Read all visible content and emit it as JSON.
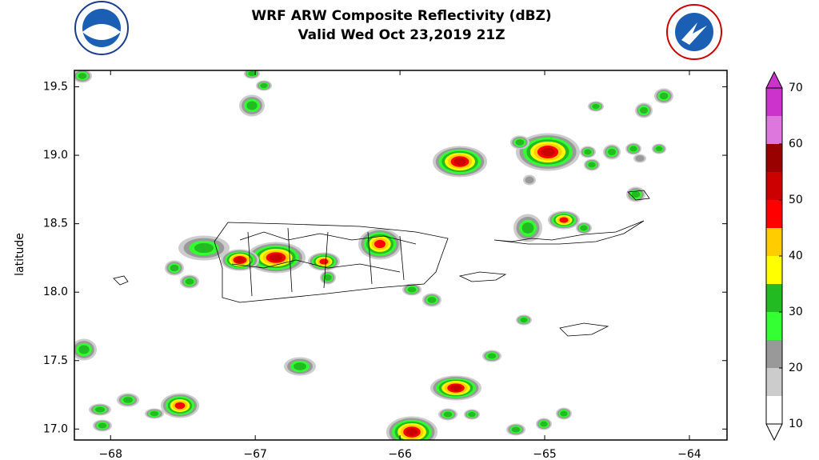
{
  "chart_data": {
    "type": "map",
    "title": "WRF ARW Composite Reflectivity (dBZ)",
    "subtitle": "Valid Wed Oct 23,2019 21Z",
    "y_label": "latitude",
    "xlim": [
      -68.25,
      -63.74
    ],
    "ylim": [
      16.92,
      19.62
    ],
    "xticks": [
      {
        "value": -68,
        "label": "−68"
      },
      {
        "value": -67,
        "label": "−67"
      },
      {
        "value": -66,
        "label": "−66"
      },
      {
        "value": -65,
        "label": "−65"
      },
      {
        "value": -64,
        "label": "−64"
      }
    ],
    "yticks": [
      {
        "value": 17.0,
        "label": "17.0"
      },
      17.5,
      {
        "value": 18.0,
        "label": "18.0"
      },
      18.5,
      {
        "value": 19.0,
        "label": "19.0"
      },
      19.5
    ],
    "colorbar": {
      "levels": [
        10,
        15,
        20,
        25,
        30,
        35,
        40,
        45,
        50,
        55,
        60,
        65,
        70
      ],
      "colors": [
        "#ffffff",
        "#cccccc",
        "#999999",
        "#33ff33",
        "#22bb22",
        "#ffff00",
        "#ffcc00",
        "#ff0000",
        "#cc0000",
        "#990000",
        "#dd77dd",
        "#cc33cc"
      ],
      "ticks": [
        10,
        20,
        30,
        40,
        50,
        60,
        70
      ]
    }
  }
}
